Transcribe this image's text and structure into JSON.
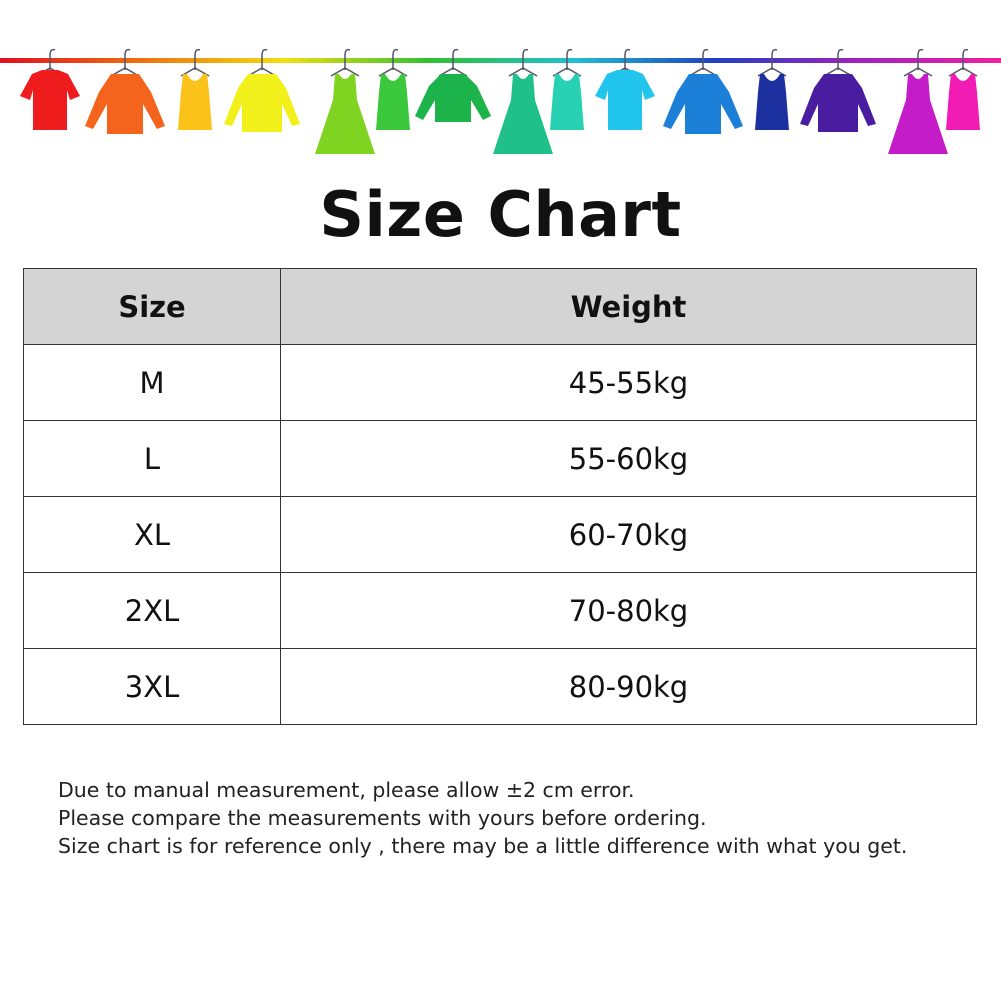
{
  "banner": {
    "rod_gradient": [
      "#e01020",
      "#f07010",
      "#f0e010",
      "#30c030",
      "#20c0d0",
      "#2040c0",
      "#a020c0",
      "#f020a0"
    ],
    "garments": [
      {
        "type": "tshirt",
        "color": "#ee1c1c"
      },
      {
        "type": "shirt",
        "color": "#f4641c"
      },
      {
        "type": "tank",
        "color": "#fbc21a"
      },
      {
        "type": "cardigan",
        "color": "#f2f01a"
      },
      {
        "type": "dress",
        "color": "#7ed420"
      },
      {
        "type": "tank",
        "color": "#3cc83c"
      },
      {
        "type": "sweater",
        "color": "#1cb44a"
      },
      {
        "type": "dress",
        "color": "#20c08a"
      },
      {
        "type": "tank",
        "color": "#28d0b4"
      },
      {
        "type": "tshirt",
        "color": "#20c4ec"
      },
      {
        "type": "shirt",
        "color": "#1c80d8"
      },
      {
        "type": "tank",
        "color": "#1c30a0"
      },
      {
        "type": "cardigan",
        "color": "#4a1ca0"
      },
      {
        "type": "dress",
        "color": "#c41cc8"
      },
      {
        "type": "tank",
        "color": "#f01cb4"
      }
    ]
  },
  "title": "Size Chart",
  "table": {
    "headers": [
      "Size",
      "Weight"
    ],
    "rows": [
      [
        "M",
        "45-55kg"
      ],
      [
        "L",
        "55-60kg"
      ],
      [
        "XL",
        "60-70kg"
      ],
      [
        "2XL",
        "70-80kg"
      ],
      [
        "3XL",
        "80-90kg"
      ]
    ]
  },
  "notes": [
    "Due to manual measurement, please allow ±2 cm error.",
    "Please compare the measurements with yours before ordering.",
    "Size chart is for reference only , there may be a little difference with what you get."
  ]
}
